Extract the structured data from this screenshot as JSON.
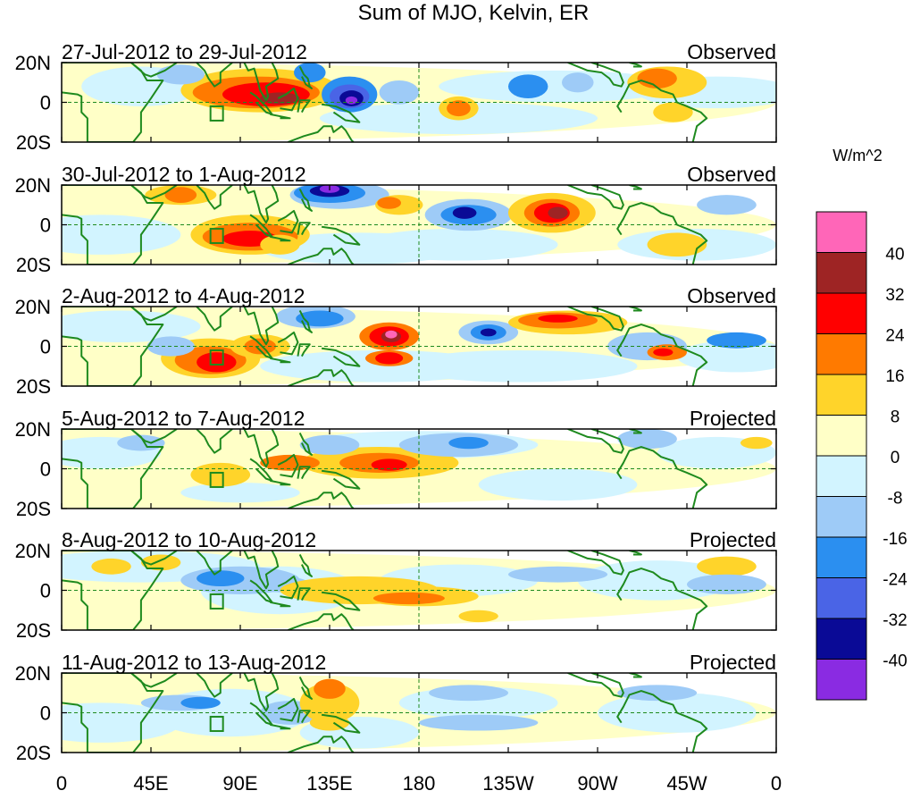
{
  "title": "Sum of MJO, Kelvin, ER",
  "panels": [
    {
      "date_range": "27-Jul-2012 to 29-Jul-2012",
      "status": "Observed"
    },
    {
      "date_range": "30-Jul-2012 to 1-Aug-2012",
      "status": "Observed"
    },
    {
      "date_range": "2-Aug-2012 to 4-Aug-2012",
      "status": "Observed"
    },
    {
      "date_range": "5-Aug-2012 to 7-Aug-2012",
      "status": "Projected"
    },
    {
      "date_range": "8-Aug-2012 to 10-Aug-2012",
      "status": "Projected"
    },
    {
      "date_range": "11-Aug-2012 to 13-Aug-2012",
      "status": "Projected"
    }
  ],
  "lat_labels": [
    "20N",
    "0",
    "20S"
  ],
  "lon_labels": [
    "0",
    "45E",
    "90E",
    "135E",
    "180",
    "135W",
    "90W",
    "45W",
    "0"
  ],
  "colorbar": {
    "units": "W/m^2",
    "labels": [
      "40",
      "32",
      "24",
      "16",
      "8",
      "0",
      "-8",
      "-16",
      "-24",
      "-32",
      "-40"
    ],
    "colors": [
      "#ff66b8",
      "#9e2424",
      "#ff0000",
      "#ff7a00",
      "#ffd42a",
      "#ffffc7",
      "#d2f4ff",
      "#9ecbf7",
      "#2b8ff0",
      "#4a64e6",
      "#0a0a96",
      "#8a2be2"
    ]
  },
  "map_colors": {
    "land": "#1e8a1e",
    "neutral_pos": "#ffffc7",
    "neutral_neg": "#d8f3ff"
  }
}
